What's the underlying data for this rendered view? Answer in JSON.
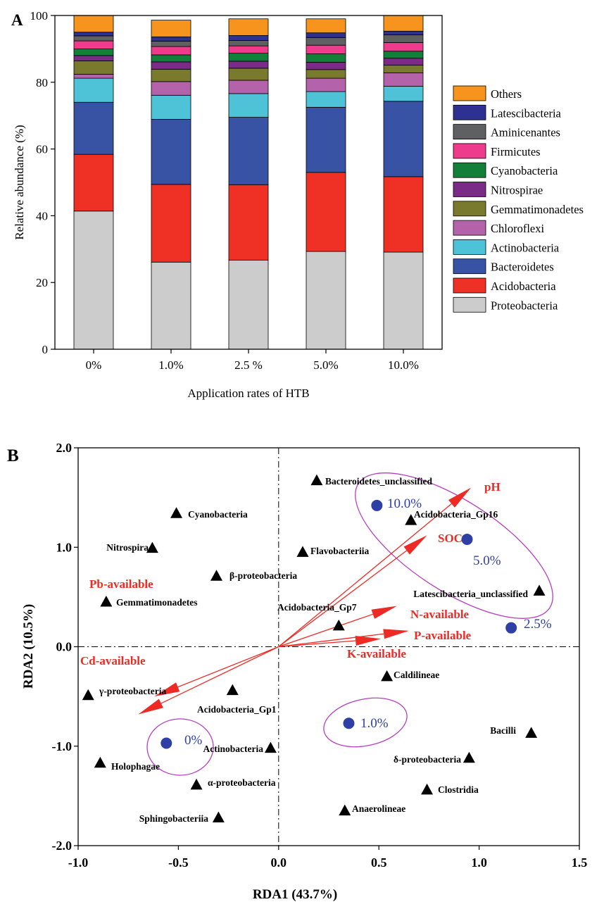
{
  "panel_labels": {
    "a": "A",
    "b": "B"
  },
  "chart_data": [
    {
      "type": "bar",
      "stacked": true,
      "panel": "A",
      "xlabel": "Application rates of HTB",
      "ylabel": "Relative abundance (%)",
      "ylim": [
        0,
        100
      ],
      "yticks": [
        "0",
        "20",
        "40",
        "60",
        "80",
        "100"
      ],
      "categories": [
        "0%",
        "1.0%",
        "2.5 %",
        "5.0%",
        "10.0%"
      ],
      "legend_position": "right",
      "series": [
        {
          "name": "Proteobacteria",
          "color": "#cccccc",
          "values": [
            41.4,
            26.1,
            26.7,
            29.3,
            29.1
          ]
        },
        {
          "name": "Acidobacteria",
          "color": "#ee3124",
          "values": [
            17.0,
            23.3,
            22.6,
            23.7,
            22.6
          ]
        },
        {
          "name": "Bacteroidetes",
          "color": "#3953a4",
          "values": [
            15.6,
            19.5,
            20.2,
            19.5,
            22.6
          ]
        },
        {
          "name": "Actinobacteria",
          "color": "#4ec3d8",
          "values": [
            7.2,
            7.2,
            7.1,
            4.7,
            4.5
          ]
        },
        {
          "name": "Chloroflexi",
          "color": "#b463ab",
          "values": [
            1.2,
            4.1,
            4.0,
            4.0,
            4.0
          ]
        },
        {
          "name": "Gemmatimonadetes",
          "color": "#7a7a2e",
          "values": [
            4.0,
            3.7,
            3.6,
            2.6,
            2.3
          ]
        },
        {
          "name": "Nitrospirae",
          "color": "#7b2a87",
          "values": [
            1.6,
            2.2,
            2.1,
            2.2,
            2.1
          ]
        },
        {
          "name": "Cyanobacteria",
          "color": "#13803a",
          "values": [
            2.0,
            2.1,
            2.4,
            2.5,
            2.1
          ]
        },
        {
          "name": "Firmicutes",
          "color": "#ee3b8b",
          "values": [
            2.4,
            2.5,
            2.2,
            2.6,
            2.6
          ]
        },
        {
          "name": "Aminicenantes",
          "color": "#5f6062",
          "values": [
            1.5,
            1.6,
            1.6,
            2.3,
            2.3
          ]
        },
        {
          "name": "Latescibacteria",
          "color": "#2e3192",
          "values": [
            1.1,
            1.3,
            1.5,
            1.4,
            1.1
          ]
        },
        {
          "name": "Others",
          "color": "#f7941d",
          "values": [
            5.0,
            5.0,
            5.0,
            4.2,
            4.7
          ]
        }
      ]
    },
    {
      "type": "scatter",
      "panel": "B",
      "xlabel": "RDA1 (43.7%)",
      "ylabel": "RDA2 (10.5%)",
      "xlim": [
        -1.0,
        1.5
      ],
      "ylim": [
        -2.0,
        2.0
      ],
      "xticks": [
        "-1.0",
        "-0.5",
        "0.0",
        "0.5",
        "1.0",
        "1.5"
      ],
      "yticks": [
        "-2.0",
        "-1.0",
        "0.0",
        "1.0",
        "2.0"
      ],
      "taxa": [
        {
          "label": "Bacteroidetes_unclassified",
          "x": 0.19,
          "y": 1.67
        },
        {
          "label": "Cyanobacteria",
          "x": -0.51,
          "y": 1.34
        },
        {
          "label": "Acidobacteria_Gp16",
          "x": 0.66,
          "y": 1.27
        },
        {
          "label": "Nitrospira",
          "x": -0.63,
          "y": 0.99
        },
        {
          "label": "Flavobacteriia",
          "x": 0.12,
          "y": 0.95
        },
        {
          "label": "β-proteobacteria",
          "x": -0.31,
          "y": 0.71
        },
        {
          "label": "Latescibacteria_unclassified",
          "x": 1.3,
          "y": 0.56
        },
        {
          "label": "Gemmatimonadetes",
          "x": -0.86,
          "y": 0.45
        },
        {
          "label": "Acidobacteria_Gp7",
          "x": 0.3,
          "y": 0.21
        },
        {
          "label": "Caldilineae",
          "x": 0.54,
          "y": -0.3
        },
        {
          "label": "γ-proteobacteria",
          "x": -0.95,
          "y": -0.49
        },
        {
          "label": "Acidobacteria_Gp1",
          "x": -0.23,
          "y": -0.44
        },
        {
          "label": "Bacilli",
          "x": 1.26,
          "y": -0.87
        },
        {
          "label": "Actinobacteria",
          "x": -0.04,
          "y": -1.02
        },
        {
          "label": "δ-proteobacteria",
          "x": 0.95,
          "y": -1.12
        },
        {
          "label": "Holophagae",
          "x": -0.89,
          "y": -1.17
        },
        {
          "label": "α-proteobacteria",
          "x": -0.41,
          "y": -1.39
        },
        {
          "label": "Clostridia",
          "x": 0.74,
          "y": -1.44
        },
        {
          "label": "Anaerolineae",
          "x": 0.33,
          "y": -1.65
        },
        {
          "label": "Sphingobacteriia",
          "x": -0.3,
          "y": -1.72
        }
      ],
      "treatments": [
        {
          "label": "10.0%",
          "x": 0.49,
          "y": 1.42
        },
        {
          "label": "5.0%",
          "x": 0.94,
          "y": 1.08
        },
        {
          "label": "2.5%",
          "x": 1.16,
          "y": 0.19
        },
        {
          "label": "1.0%",
          "x": 0.35,
          "y": -0.77
        },
        {
          "label": "0%",
          "x": -0.56,
          "y": -0.97
        }
      ],
      "env_vectors": [
        {
          "label": "pH",
          "x": 0.96,
          "y": 1.6
        },
        {
          "label": "SOC",
          "x": 0.74,
          "y": 1.12
        },
        {
          "label": "N-available",
          "x": 0.59,
          "y": 0.41
        },
        {
          "label": "P-available",
          "x": 0.65,
          "y": 0.16
        },
        {
          "label": "K-available",
          "x": 0.51,
          "y": 0.08
        },
        {
          "label": "Pb-available",
          "x": -0.62,
          "y": -0.5
        },
        {
          "label": "Cd-available",
          "x": -0.7,
          "y": -0.68
        }
      ],
      "colors": {
        "taxa": "#000000",
        "treatment": "#2e3fa6",
        "vector": "#ee2a24",
        "ellipse": "#b53fbf"
      }
    }
  ]
}
